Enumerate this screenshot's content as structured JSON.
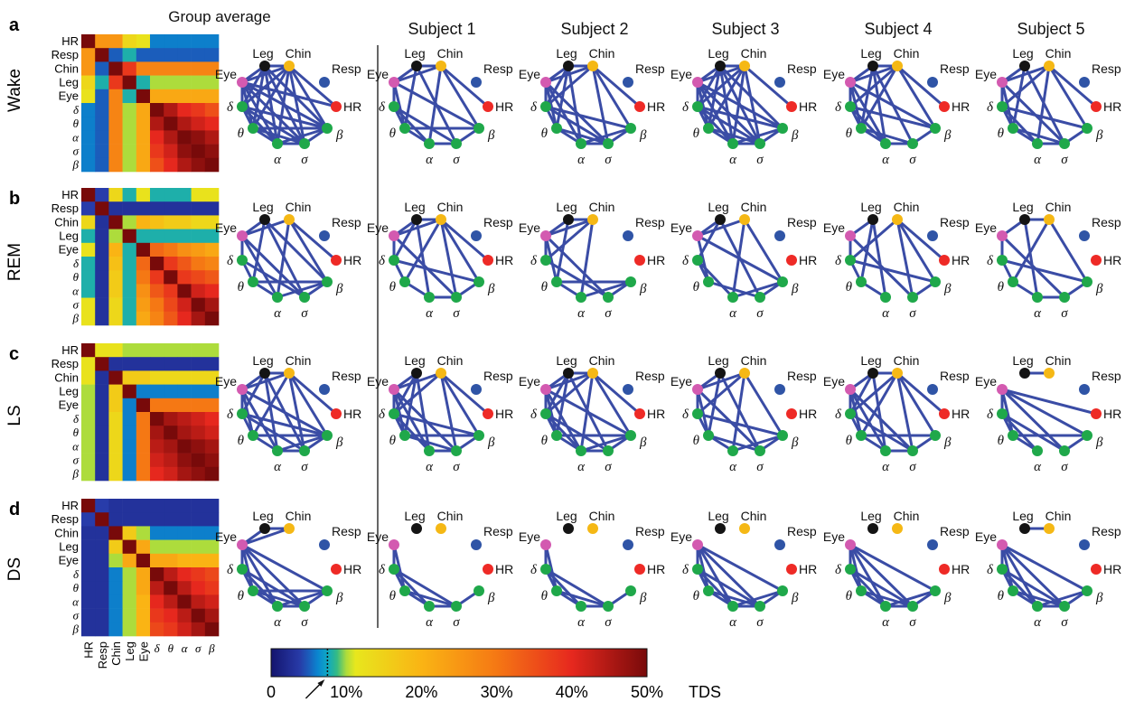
{
  "panel_letters": [
    "a",
    "b",
    "c",
    "d"
  ],
  "stages": [
    "Wake",
    "REM",
    "LS",
    "DS"
  ],
  "group_title": "Group average",
  "subjects": [
    "Subject 1",
    "Subject 2",
    "Subject 3",
    "Subject 4",
    "Subject 5"
  ],
  "signals": [
    "HR",
    "Resp",
    "Chin",
    "Leg",
    "Eye",
    "δ",
    "θ",
    "α",
    "σ",
    "β"
  ],
  "node_colors": {
    "Leg": "#141414",
    "Chin": "#f5b815",
    "Resp": "#2f54a6",
    "HR": "#ee2a26",
    "Eye": "#d35ab0",
    "δ": "#1fa84a",
    "θ": "#1fa84a",
    "α": "#1fa84a",
    "σ": "#1fa84a",
    "β": "#1fa84a"
  },
  "edge_color": "#3a4ca5",
  "colorbar": {
    "ticks": [
      "0",
      "10%",
      "20%",
      "30%",
      "40%",
      "50%"
    ],
    "unit": "TDS",
    "range": [
      0,
      50
    ],
    "threshold_marker": 7.5
  },
  "matrices": [
    [
      [
        50,
        25,
        25,
        14,
        12,
        6,
        6,
        6,
        6,
        6
      ],
      [
        25,
        50,
        5,
        8,
        5,
        5,
        5,
        5,
        5,
        5
      ],
      [
        25,
        5,
        50,
        38,
        28,
        28,
        28,
        28,
        28,
        28
      ],
      [
        14,
        8,
        38,
        50,
        8,
        10,
        10,
        10,
        10,
        10
      ],
      [
        12,
        5,
        28,
        8,
        50,
        22,
        22,
        22,
        22,
        22
      ],
      [
        6,
        5,
        28,
        10,
        22,
        50,
        45,
        40,
        38,
        35
      ],
      [
        6,
        5,
        28,
        10,
        22,
        45,
        50,
        45,
        42,
        40
      ],
      [
        6,
        5,
        28,
        10,
        22,
        40,
        45,
        50,
        48,
        45
      ],
      [
        6,
        5,
        28,
        10,
        22,
        38,
        42,
        48,
        50,
        48
      ],
      [
        6,
        5,
        28,
        10,
        22,
        35,
        40,
        45,
        48,
        50
      ]
    ],
    [
      [
        50,
        4,
        14,
        8,
        12,
        8,
        8,
        8,
        12,
        12
      ],
      [
        4,
        50,
        3,
        3,
        3,
        3,
        3,
        3,
        3,
        3
      ],
      [
        14,
        3,
        50,
        10,
        20,
        18,
        16,
        16,
        14,
        14
      ],
      [
        8,
        3,
        10,
        50,
        8,
        8,
        8,
        8,
        8,
        8
      ],
      [
        12,
        3,
        20,
        8,
        50,
        32,
        30,
        26,
        24,
        22
      ],
      [
        8,
        3,
        18,
        8,
        32,
        50,
        38,
        34,
        30,
        28
      ],
      [
        8,
        3,
        16,
        8,
        30,
        38,
        50,
        38,
        36,
        34
      ],
      [
        8,
        3,
        16,
        8,
        26,
        34,
        38,
        50,
        42,
        40
      ],
      [
        12,
        3,
        14,
        8,
        24,
        30,
        36,
        42,
        50,
        46
      ],
      [
        12,
        3,
        14,
        8,
        22,
        28,
        34,
        40,
        46,
        50
      ]
    ],
    [
      [
        50,
        12,
        12,
        10,
        10,
        10,
        10,
        10,
        10,
        10
      ],
      [
        12,
        50,
        3,
        3,
        3,
        3,
        3,
        3,
        3,
        3
      ],
      [
        12,
        3,
        50,
        16,
        16,
        14,
        14,
        14,
        14,
        14
      ],
      [
        10,
        3,
        16,
        50,
        6,
        6,
        6,
        6,
        6,
        6
      ],
      [
        10,
        3,
        16,
        6,
        50,
        30,
        30,
        30,
        30,
        30
      ],
      [
        10,
        3,
        14,
        6,
        30,
        50,
        46,
        44,
        42,
        40
      ],
      [
        10,
        3,
        14,
        6,
        30,
        46,
        50,
        46,
        44,
        42
      ],
      [
        10,
        3,
        14,
        6,
        30,
        44,
        46,
        50,
        48,
        46
      ],
      [
        10,
        3,
        14,
        6,
        30,
        42,
        44,
        48,
        50,
        48
      ],
      [
        10,
        3,
        14,
        6,
        30,
        40,
        42,
        46,
        48,
        50
      ]
    ],
    [
      [
        50,
        4,
        3,
        3,
        3,
        3,
        3,
        3,
        3,
        3
      ],
      [
        4,
        50,
        3,
        3,
        3,
        3,
        3,
        3,
        3,
        3
      ],
      [
        3,
        3,
        50,
        16,
        10,
        6,
        6,
        6,
        6,
        6
      ],
      [
        3,
        3,
        16,
        50,
        22,
        10,
        10,
        10,
        10,
        10
      ],
      [
        3,
        3,
        10,
        22,
        50,
        22,
        22,
        20,
        20,
        20
      ],
      [
        3,
        3,
        6,
        10,
        22,
        50,
        44,
        40,
        38,
        36
      ],
      [
        3,
        3,
        6,
        10,
        22,
        44,
        50,
        44,
        40,
        38
      ],
      [
        3,
        3,
        6,
        10,
        20,
        40,
        44,
        50,
        44,
        42
      ],
      [
        3,
        3,
        6,
        10,
        20,
        38,
        40,
        44,
        50,
        46
      ],
      [
        3,
        3,
        6,
        10,
        20,
        36,
        38,
        42,
        46,
        50
      ]
    ]
  ],
  "networks": [
    [
      [
        "Leg-Chin",
        "Leg-Eye",
        "Leg-δ",
        "Leg-θ",
        "Leg-α",
        "Leg-σ",
        "Leg-β",
        "Chin-Eye",
        "Chin-δ",
        "Chin-θ",
        "Chin-α",
        "Chin-σ",
        "Chin-β",
        "Eye-δ",
        "Eye-θ",
        "Eye-α",
        "Eye-σ",
        "Eye-β",
        "δ-θ",
        "δ-α",
        "δ-σ",
        "δ-β",
        "θ-α",
        "θ-σ",
        "θ-β",
        "α-σ",
        "α-β",
        "σ-β",
        "HR-Chin",
        "HR-Eye"
      ],
      [
        "Leg-Chin",
        "Leg-Eye",
        "Leg-θ",
        "Leg-σ",
        "Chin-Eye",
        "Chin-α",
        "Chin-β",
        "Eye-δ",
        "Eye-θ",
        "Eye-β",
        "δ-θ",
        "δ-α",
        "δ-σ",
        "θ-α",
        "θ-β",
        "α-σ",
        "σ-β",
        "HR-Chin"
      ],
      [
        "Leg-Chin",
        "Leg-Eye",
        "Leg-δ",
        "Leg-θ",
        "Leg-α",
        "Chin-Eye",
        "Chin-δ",
        "Chin-σ",
        "Chin-β",
        "Eye-δ",
        "Eye-θ",
        "Eye-α",
        "Eye-σ",
        "δ-θ",
        "δ-σ",
        "δ-β",
        "θ-α",
        "θ-σ",
        "α-σ",
        "α-β",
        "σ-β",
        "HR-Chin"
      ],
      [
        "Leg-Chin",
        "Leg-Eye",
        "Leg-δ",
        "Leg-θ",
        "Leg-α",
        "Leg-σ",
        "Leg-β",
        "Chin-Eye",
        "Chin-δ",
        "Chin-θ",
        "Chin-α",
        "Chin-σ",
        "Eye-δ",
        "Eye-θ",
        "Eye-α",
        "Eye-σ",
        "Eye-β",
        "δ-θ",
        "δ-α",
        "δ-σ",
        "δ-β",
        "θ-α",
        "θ-σ",
        "α-σ",
        "α-β",
        "σ-β",
        "HR-Chin"
      ],
      [
        "Leg-Chin",
        "Leg-Eye",
        "Leg-θ",
        "Leg-α",
        "Leg-σ",
        "Chin-Eye",
        "Chin-δ",
        "Chin-θ",
        "Chin-β",
        "Eye-δ",
        "Eye-θ",
        "Eye-α",
        "Eye-β",
        "δ-θ",
        "δ-α",
        "δ-β",
        "θ-α",
        "θ-σ",
        "α-σ",
        "σ-β",
        "HR-Chin"
      ],
      [
        "Leg-Eye",
        "Leg-θ",
        "Leg-σ",
        "Chin-Eye",
        "Chin-δ",
        "Chin-α",
        "Chin-β",
        "Eye-δ",
        "Eye-θ",
        "Eye-σ",
        "δ-θ",
        "δ-α",
        "δ-β",
        "θ-α",
        "θ-σ",
        "α-σ",
        "σ-β",
        "HR-Chin"
      ]
    ],
    [
      [
        "Leg-Eye",
        "Leg-θ",
        "Leg-σ",
        "Leg-β",
        "Chin-Eye",
        "Chin-α",
        "Chin-β",
        "Eye-δ",
        "Eye-α",
        "Eye-σ",
        "δ-θ",
        "δ-σ",
        "θ-α",
        "θ-β",
        "α-β",
        "σ-β",
        "HR-Chin"
      ],
      [
        "Leg-Chin",
        "Leg-Eye",
        "Leg-δ",
        "Leg-α",
        "Chin-Eye",
        "Chin-θ",
        "Chin-σ",
        "Chin-β",
        "Eye-δ",
        "Eye-σ",
        "δ-θ",
        "δ-β",
        "θ-α",
        "α-σ",
        "σ-β",
        "HR-Chin"
      ],
      [
        "Leg-Chin",
        "Leg-Eye",
        "Leg-θ",
        "Chin-Eye",
        "Chin-δ",
        "Chin-α",
        "Eye-δ",
        "Eye-θ",
        "Eye-σ",
        "δ-σ",
        "θ-α",
        "θ-β",
        "α-β",
        "σ-β"
      ],
      [
        "Leg-Eye",
        "Leg-δ",
        "Leg-σ",
        "Chin-Eye",
        "Chin-α",
        "Chin-β",
        "Eye-θ",
        "Eye-β",
        "δ-θ",
        "δ-α",
        "θ-σ",
        "α-β",
        "σ-β"
      ],
      [
        "Leg-Eye",
        "Leg-θ",
        "Leg-α",
        "Chin-δ",
        "Chin-σ",
        "Chin-β",
        "Eye-δ",
        "Eye-σ",
        "δ-θ",
        "δ-β",
        "θ-α",
        "σ-β",
        "HR-Chin"
      ],
      [
        "Leg-Chin",
        "Leg-Eye",
        "Leg-α",
        "Chin-θ",
        "Chin-β",
        "Eye-δ",
        "Eye-σ",
        "δ-θ",
        "δ-β",
        "θ-α",
        "α-σ",
        "σ-β"
      ]
    ],
    [
      [
        "Leg-Chin",
        "Leg-Eye",
        "Leg-δ",
        "Leg-α",
        "Leg-σ",
        "Chin-Eye",
        "Chin-θ",
        "Chin-σ",
        "Chin-β",
        "Eye-δ",
        "Eye-θ",
        "Eye-α",
        "Eye-β",
        "δ-θ",
        "δ-σ",
        "δ-β",
        "θ-α",
        "θ-β",
        "α-σ",
        "α-β",
        "σ-β",
        "HR-Chin"
      ],
      [
        "Leg-Eye",
        "Leg-δ",
        "Leg-θ",
        "Leg-α",
        "Chin-Eye",
        "Chin-δ",
        "Chin-σ",
        "Chin-β",
        "Eye-δ",
        "Eye-θ",
        "Eye-α",
        "Eye-σ",
        "δ-θ",
        "δ-α",
        "δ-β",
        "θ-σ",
        "θ-β",
        "α-σ",
        "σ-β",
        "HR-Chin"
      ],
      [
        "Leg-Chin",
        "Leg-Eye",
        "Leg-δ",
        "Leg-θ",
        "Leg-σ",
        "Chin-Eye",
        "Chin-δ",
        "Chin-α",
        "Chin-β",
        "Eye-δ",
        "Eye-θ",
        "Eye-α",
        "Eye-β",
        "δ-θ",
        "δ-α",
        "δ-σ",
        "θ-α",
        "θ-β",
        "α-σ",
        "α-β",
        "σ-β",
        "HR-Chin"
      ],
      [
        "Leg-Eye",
        "Leg-θ",
        "Leg-σ",
        "Chin-Eye",
        "Chin-δ",
        "Chin-α",
        "Chin-β",
        "Eye-δ",
        "Eye-θ",
        "Eye-σ",
        "δ-θ",
        "δ-β",
        "θ-α",
        "θ-σ",
        "α-β",
        "σ-β"
      ],
      [
        "Leg-Chin",
        "Leg-Eye",
        "Leg-δ",
        "Leg-α",
        "Chin-δ",
        "Chin-θ",
        "Chin-σ",
        "Chin-β",
        "Eye-δ",
        "Eye-θ",
        "Eye-α",
        "Eye-σ",
        "δ-θ",
        "δ-σ",
        "θ-α",
        "θ-β",
        "α-σ",
        "σ-β",
        "HR-Chin"
      ],
      [
        "Leg-Chin",
        "Eye-δ",
        "Eye-θ",
        "Eye-σ",
        "Eye-β",
        "δ-θ",
        "δ-α",
        "δ-σ",
        "θ-α",
        "θ-β",
        "σ-β",
        "HR-Eye"
      ]
    ],
    [
      [
        "Leg-Chin",
        "Leg-Eye",
        "Chin-Eye",
        "Eye-δ",
        "Eye-θ",
        "Eye-α",
        "Eye-σ",
        "Eye-β",
        "δ-θ",
        "δ-α",
        "δ-σ",
        "θ-α",
        "θ-σ",
        "θ-β",
        "α-σ",
        "α-β",
        "σ-β"
      ],
      [
        "Eye-δ",
        "Eye-θ",
        "δ-θ",
        "δ-α",
        "δ-σ",
        "θ-α",
        "θ-σ",
        "α-σ",
        "σ-β"
      ],
      [
        "Eye-δ",
        "Eye-θ",
        "δ-θ",
        "δ-α",
        "δ-σ",
        "θ-α",
        "θ-σ",
        "α-σ",
        "σ-β"
      ],
      [
        "Eye-δ",
        "Eye-θ",
        "Eye-α",
        "Eye-σ",
        "Eye-β",
        "δ-θ",
        "δ-α",
        "δ-σ",
        "θ-α",
        "θ-σ",
        "α-σ",
        "α-β",
        "σ-β"
      ],
      [
        "Eye-δ",
        "Eye-θ",
        "Eye-α",
        "Eye-σ",
        "Eye-β",
        "δ-θ",
        "δ-α",
        "δ-σ",
        "θ-α",
        "θ-σ",
        "α-σ",
        "α-β",
        "σ-β"
      ],
      [
        "Leg-Chin",
        "Eye-δ",
        "Eye-θ",
        "Eye-α",
        "Eye-σ",
        "Eye-β",
        "δ-θ",
        "δ-α",
        "δ-σ",
        "θ-α",
        "θ-σ",
        "α-σ",
        "α-β",
        "σ-β"
      ]
    ]
  ]
}
